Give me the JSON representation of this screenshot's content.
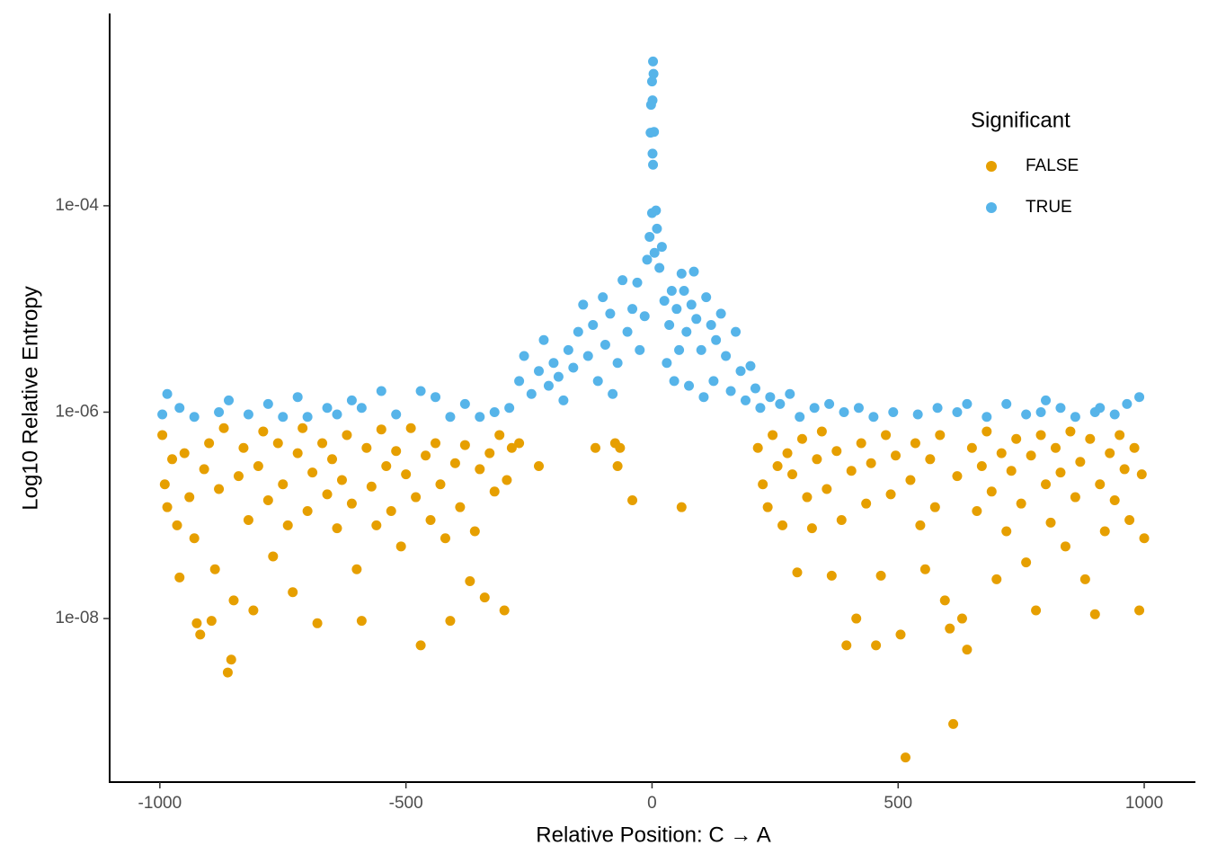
{
  "chart_data": {
    "type": "scatter",
    "x_label": "Relative Position: C → A",
    "y_label": "Log10 Relative Entropy",
    "legend_title": "Significant",
    "legend": "top-right",
    "yscale": "log",
    "xlim": [
      -1102,
      1104
    ],
    "ylim": [
      2.6e-10,
      0.0073
    ],
    "xticks": [
      -1000,
      -500,
      0,
      500,
      1000
    ],
    "yticks": [
      {
        "value": 0.0001,
        "label": "1e-04"
      },
      {
        "value": 1e-06,
        "label": "1e-06"
      },
      {
        "value": 1e-08,
        "label": "1e-08"
      }
    ],
    "series": [
      {
        "name": "FALSE",
        "color": "#E69F00",
        "x": [
          -995,
          -990,
          -985,
          -975,
          -965,
          -960,
          -950,
          -940,
          -930,
          -925,
          -918,
          -910,
          -900,
          -895,
          -888,
          -880,
          -870,
          -862,
          -855,
          -850,
          -840,
          -830,
          -820,
          -810,
          -800,
          -790,
          -780,
          -770,
          -760,
          -750,
          -740,
          -730,
          -720,
          -710,
          -700,
          -690,
          -680,
          -670,
          -660,
          -650,
          -640,
          -630,
          -620,
          -610,
          -600,
          -590,
          -580,
          -570,
          -560,
          -550,
          -540,
          -530,
          -520,
          -510,
          -500,
          -490,
          -480,
          -470,
          -460,
          -450,
          -440,
          -430,
          -420,
          -410,
          -400,
          -390,
          -380,
          -370,
          -360,
          -350,
          -340,
          -330,
          -320,
          -310,
          -300,
          -295,
          -285,
          -270,
          -230,
          -115,
          -75,
          -70,
          -65,
          -40,
          60,
          215,
          225,
          235,
          245,
          255,
          265,
          275,
          285,
          295,
          305,
          315,
          325,
          335,
          345,
          355,
          365,
          375,
          385,
          395,
          405,
          415,
          425,
          435,
          445,
          455,
          465,
          475,
          485,
          495,
          505,
          515,
          525,
          535,
          545,
          555,
          565,
          575,
          585,
          595,
          605,
          612,
          620,
          630,
          640,
          650,
          660,
          670,
          680,
          690,
          700,
          710,
          720,
          730,
          740,
          750,
          760,
          770,
          780,
          790,
          800,
          810,
          820,
          830,
          840,
          850,
          860,
          870,
          880,
          890,
          900,
          910,
          920,
          930,
          940,
          950,
          960,
          970,
          980,
          990,
          995,
          1000
        ],
        "y": [
          6e-07,
          2e-07,
          1.2e-07,
          3.5e-07,
          8e-08,
          2.5e-08,
          4e-07,
          1.5e-07,
          6e-08,
          9e-09,
          7e-09,
          2.8e-07,
          5e-07,
          9.5e-09,
          3e-08,
          1.8e-07,
          7e-07,
          3e-09,
          4e-09,
          1.5e-08,
          2.4e-07,
          4.5e-07,
          9e-08,
          1.2e-08,
          3e-07,
          6.5e-07,
          1.4e-07,
          4e-08,
          5e-07,
          2e-07,
          8e-08,
          1.8e-08,
          4e-07,
          7e-07,
          1.1e-07,
          2.6e-07,
          9e-09,
          5e-07,
          1.6e-07,
          3.5e-07,
          7.5e-08,
          2.2e-07,
          6e-07,
          1.3e-07,
          3e-08,
          9.5e-09,
          4.5e-07,
          1.9e-07,
          8e-08,
          6.8e-07,
          3e-07,
          1.1e-07,
          4.2e-07,
          5e-08,
          2.5e-07,
          7e-07,
          1.5e-07,
          5.5e-09,
          3.8e-07,
          9e-08,
          5e-07,
          2e-07,
          6e-08,
          9.5e-09,
          3.2e-07,
          1.2e-07,
          4.8e-07,
          2.3e-08,
          7e-08,
          2.8e-07,
          1.6e-08,
          4e-07,
          1.7e-07,
          6e-07,
          1.2e-08,
          2.2e-07,
          4.5e-07,
          5e-07,
          3e-07,
          4.5e-07,
          5e-07,
          3e-07,
          4.5e-07,
          1.4e-07,
          1.2e-07,
          4.5e-07,
          2e-07,
          1.2e-07,
          6e-07,
          3e-07,
          8e-08,
          4e-07,
          2.5e-07,
          2.8e-08,
          5.5e-07,
          1.5e-07,
          7.5e-08,
          3.5e-07,
          6.5e-07,
          1.8e-07,
          2.6e-08,
          4.2e-07,
          9e-08,
          5.5e-09,
          2.7e-07,
          1e-08,
          5e-07,
          1.3e-07,
          3.2e-07,
          5.5e-09,
          2.6e-08,
          6e-07,
          1.6e-07,
          3.8e-07,
          7e-09,
          4.5e-10,
          2.2e-07,
          5e-07,
          8e-08,
          3e-08,
          3.5e-07,
          1.2e-07,
          6e-07,
          1.5e-08,
          8e-09,
          9.5e-10,
          2.4e-07,
          1e-08,
          5e-09,
          4.5e-07,
          1.1e-07,
          3e-07,
          6.5e-07,
          1.7e-07,
          2.4e-08,
          4e-07,
          7e-08,
          2.7e-07,
          5.5e-07,
          1.3e-07,
          3.5e-08,
          3.8e-07,
          1.2e-08,
          6e-07,
          2e-07,
          8.5e-08,
          4.5e-07,
          2.6e-07,
          5e-08,
          6.5e-07,
          1.5e-07,
          3.3e-07,
          2.4e-08,
          5.5e-07,
          1.1e-08,
          2e-07,
          7e-08,
          4e-07,
          1.4e-07,
          6e-07,
          2.8e-07,
          9e-08,
          4.5e-07,
          1.2e-08,
          2.5e-07,
          6e-08
        ]
      },
      {
        "name": "TRUE",
        "color": "#56B4E9",
        "x": [
          -995,
          -985,
          -960,
          -930,
          -880,
          -860,
          -820,
          -780,
          -750,
          -720,
          -700,
          -660,
          -640,
          -610,
          -590,
          -550,
          -520,
          -470,
          -440,
          -410,
          -380,
          -350,
          -320,
          -290,
          -270,
          -260,
          -245,
          -230,
          -220,
          -210,
          -200,
          -190,
          -180,
          -170,
          -160,
          -150,
          -140,
          -130,
          -120,
          -110,
          -100,
          -95,
          -85,
          -80,
          -70,
          -60,
          -50,
          -40,
          -30,
          -25,
          -15,
          -10,
          -5,
          0,
          2,
          3,
          0,
          1,
          -2,
          4,
          -3,
          1,
          2,
          5,
          8,
          10,
          15,
          20,
          25,
          30,
          35,
          40,
          45,
          50,
          55,
          60,
          65,
          70,
          75,
          80,
          85,
          90,
          100,
          105,
          110,
          120,
          125,
          130,
          140,
          150,
          160,
          170,
          180,
          190,
          200,
          210,
          220,
          240,
          260,
          280,
          300,
          330,
          360,
          390,
          420,
          450,
          490,
          540,
          580,
          620,
          640,
          680,
          720,
          760,
          790,
          800,
          830,
          860,
          900,
          910,
          940,
          965,
          990
        ],
        "y": [
          9.5e-07,
          1.5e-06,
          1.1e-06,
          9e-07,
          1e-06,
          1.3e-06,
          9.5e-07,
          1.2e-06,
          9e-07,
          1.4e-06,
          9e-07,
          1.1e-06,
          9.5e-07,
          1.3e-06,
          1.1e-06,
          1.6e-06,
          9.5e-07,
          1.6e-06,
          1.4e-06,
          9e-07,
          1.2e-06,
          9e-07,
          1e-06,
          1.1e-06,
          2e-06,
          3.5e-06,
          1.5e-06,
          2.5e-06,
          5e-06,
          1.8e-06,
          3e-06,
          2.2e-06,
          1.3e-06,
          4e-06,
          2.7e-06,
          6e-06,
          1.1e-05,
          3.5e-06,
          7e-06,
          2e-06,
          1.3e-05,
          4.5e-06,
          9e-06,
          1.5e-06,
          3e-06,
          1.9e-05,
          6e-06,
          1e-05,
          1.8e-05,
          4e-06,
          8.5e-06,
          3e-05,
          5e-05,
          8.5e-05,
          0.0025,
          0.0019,
          0.0016,
          0.00105,
          0.00095,
          0.00052,
          0.00051,
          0.00032,
          0.00025,
          3.5e-05,
          9e-05,
          6e-05,
          2.5e-05,
          4e-05,
          1.2e-05,
          3e-06,
          7e-06,
          1.5e-05,
          2e-06,
          1e-05,
          4e-06,
          2.2e-05,
          1.5e-05,
          6e-06,
          1.8e-06,
          1.1e-05,
          2.3e-05,
          8e-06,
          4e-06,
          1.4e-06,
          1.3e-05,
          7e-06,
          2e-06,
          5e-06,
          9e-06,
          3.5e-06,
          1.6e-06,
          6e-06,
          2.5e-06,
          1.3e-06,
          2.8e-06,
          1.7e-06,
          1.1e-06,
          1.4e-06,
          1.2e-06,
          1.5e-06,
          9e-07,
          1.1e-06,
          1.2e-06,
          1e-06,
          1.1e-06,
          9e-07,
          1e-06,
          9.5e-07,
          1.1e-06,
          1e-06,
          1.2e-06,
          9e-07,
          1.2e-06,
          9.5e-07,
          1e-06,
          1.3e-06,
          1.1e-06,
          9e-07,
          1e-06,
          1.1e-06,
          9.5e-07,
          1.2e-06,
          1.4e-06
        ]
      }
    ]
  }
}
